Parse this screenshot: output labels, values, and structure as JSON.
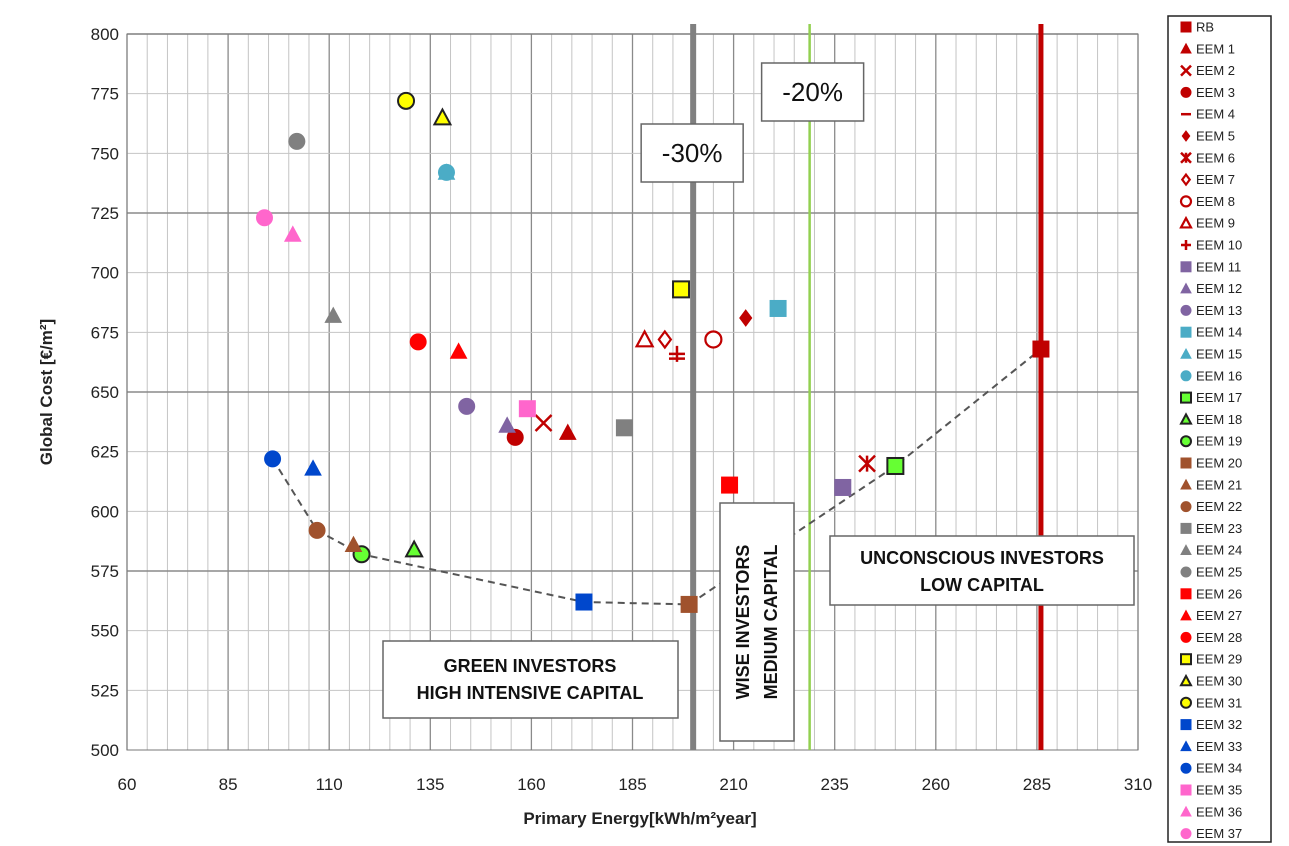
{
  "chart_data": {
    "type": "scatter",
    "title": "",
    "xlabel": "Primary Energy[kWh/m²year]",
    "ylabel": "Global Cost [€/m²]",
    "xlim": [
      60,
      310
    ],
    "ylim": [
      500,
      800
    ],
    "xticks": [
      "60",
      "85",
      "110",
      "135",
      "160",
      "185",
      "210",
      "235",
      "260",
      "285",
      "310"
    ],
    "yticks": [
      "500",
      "525",
      "550",
      "575",
      "600",
      "625",
      "650",
      "675",
      "700",
      "725",
      "750",
      "775",
      "800"
    ],
    "grid": true,
    "legend_position": "right",
    "series": [
      {
        "name": "RB",
        "shape": "square",
        "filled": true,
        "color": "#c00000",
        "x": 286,
        "y": 668
      },
      {
        "name": "EEM 1",
        "shape": "triangle",
        "filled": true,
        "color": "#c00000",
        "x": 169,
        "y": 633
      },
      {
        "name": "EEM 2",
        "shape": "x",
        "filled": false,
        "color": "#c00000",
        "x": 163,
        "y": 637
      },
      {
        "name": "EEM 3",
        "shape": "circle",
        "filled": true,
        "color": "#c00000",
        "x": 156,
        "y": 631
      },
      {
        "name": "EEM 4",
        "shape": "dash",
        "filled": false,
        "color": "#c00000",
        "x": 196,
        "y": 664
      },
      {
        "name": "EEM 5",
        "shape": "diamond",
        "filled": true,
        "color": "#c00000",
        "x": 213,
        "y": 681
      },
      {
        "name": "EEM 6",
        "shape": "star",
        "filled": false,
        "color": "#c00000",
        "x": 243,
        "y": 620
      },
      {
        "name": "EEM 7",
        "shape": "diamond",
        "filled": false,
        "color": "#c00000",
        "x": 193,
        "y": 672
      },
      {
        "name": "EEM 8",
        "shape": "circle",
        "filled": false,
        "color": "#c00000",
        "x": 205,
        "y": 672
      },
      {
        "name": "EEM 9",
        "shape": "triangle",
        "filled": false,
        "color": "#c00000",
        "x": 188,
        "y": 672
      },
      {
        "name": "EEM 10",
        "shape": "plus",
        "filled": false,
        "color": "#c00000",
        "x": 196,
        "y": 666
      },
      {
        "name": "EEM 11",
        "shape": "square",
        "filled": true,
        "color": "#8064a2",
        "x": 237,
        "y": 610
      },
      {
        "name": "EEM 12",
        "shape": "triangle",
        "filled": true,
        "color": "#8064a2",
        "x": 154,
        "y": 636
      },
      {
        "name": "EEM 13",
        "shape": "circle",
        "filled": true,
        "color": "#8064a2",
        "x": 144,
        "y": 644
      },
      {
        "name": "EEM 14",
        "shape": "square",
        "filled": true,
        "color": "#4bacc6",
        "x": 221,
        "y": 685
      },
      {
        "name": "EEM 15",
        "shape": "triangle",
        "filled": true,
        "color": "#4bacc6",
        "x": 139,
        "y": 742
      },
      {
        "name": "EEM 16",
        "shape": "circle",
        "filled": true,
        "color": "#4bacc6",
        "x": 139,
        "y": 742
      },
      {
        "name": "EEM 17",
        "shape": "square",
        "filled": true,
        "color": "#66ff33",
        "stroke": "#222",
        "x": 250,
        "y": 619
      },
      {
        "name": "EEM 18",
        "shape": "triangle",
        "filled": true,
        "color": "#66ff33",
        "stroke": "#222",
        "x": 131,
        "y": 584
      },
      {
        "name": "EEM 19",
        "shape": "circle",
        "filled": true,
        "color": "#66ff33",
        "stroke": "#222",
        "x": 118,
        "y": 582
      },
      {
        "name": "EEM 20",
        "shape": "square",
        "filled": true,
        "color": "#a0522d",
        "x": 199,
        "y": 561
      },
      {
        "name": "EEM 21",
        "shape": "triangle",
        "filled": true,
        "color": "#a0522d",
        "x": 116,
        "y": 586
      },
      {
        "name": "EEM 22",
        "shape": "circle",
        "filled": true,
        "color": "#a0522d",
        "x": 107,
        "y": 592
      },
      {
        "name": "EEM 23",
        "shape": "square",
        "filled": true,
        "color": "#808080",
        "x": 183,
        "y": 635
      },
      {
        "name": "EEM 24",
        "shape": "triangle",
        "filled": true,
        "color": "#808080",
        "x": 111,
        "y": 682
      },
      {
        "name": "EEM 25",
        "shape": "circle",
        "filled": true,
        "color": "#808080",
        "x": 102,
        "y": 755
      },
      {
        "name": "EEM 26",
        "shape": "square",
        "filled": true,
        "color": "#ff0000",
        "x": 209,
        "y": 611
      },
      {
        "name": "EEM 27",
        "shape": "triangle",
        "filled": true,
        "color": "#ff0000",
        "x": 142,
        "y": 667
      },
      {
        "name": "EEM 28",
        "shape": "circle",
        "filled": true,
        "color": "#ff0000",
        "x": 132,
        "y": 671
      },
      {
        "name": "EEM 29",
        "shape": "square",
        "filled": true,
        "color": "#ffff00",
        "stroke": "#222",
        "x": 197,
        "y": 693
      },
      {
        "name": "EEM 30",
        "shape": "triangle",
        "filled": true,
        "color": "#ffff00",
        "stroke": "#222",
        "x": 138,
        "y": 765
      },
      {
        "name": "EEM 31",
        "shape": "circle",
        "filled": true,
        "color": "#ffff00",
        "stroke": "#222",
        "x": 129,
        "y": 772
      },
      {
        "name": "EEM 32",
        "shape": "square",
        "filled": true,
        "color": "#0047cc",
        "x": 173,
        "y": 562
      },
      {
        "name": "EEM 33",
        "shape": "triangle",
        "filled": true,
        "color": "#0047cc",
        "x": 106,
        "y": 618
      },
      {
        "name": "EEM 34",
        "shape": "circle",
        "filled": true,
        "color": "#0047cc",
        "x": 96,
        "y": 622
      },
      {
        "name": "EEM 35",
        "shape": "square",
        "filled": true,
        "color": "#ff66cc",
        "x": 159,
        "y": 643
      },
      {
        "name": "EEM 36",
        "shape": "triangle",
        "filled": true,
        "color": "#ff66cc",
        "x": 101,
        "y": 716
      },
      {
        "name": "EEM 37",
        "shape": "circle",
        "filled": true,
        "color": "#ff66cc",
        "x": 94,
        "y": 723
      }
    ],
    "pareto_front": {
      "x": [
        96,
        107,
        118,
        173,
        199,
        250,
        286
      ],
      "y": [
        622,
        592,
        582,
        562,
        561,
        619,
        668
      ]
    },
    "reference_lines": [
      {
        "label": "-30%",
        "x": 200,
        "color": "#808080"
      },
      {
        "label": "-20%",
        "x": 228.8,
        "color": "#92d050"
      },
      {
        "label": "",
        "x": 286,
        "color": "#c00000"
      }
    ],
    "annotations": [
      {
        "lines": [
          "GREEN INVESTORS",
          "HIGH INTENSIVE CAPITAL"
        ]
      },
      {
        "lines": [
          "WISE INVESTORS",
          "MEDIUM CAPITAL"
        ]
      },
      {
        "lines": [
          "UNCONSCIOUS INVESTORS",
          "LOW CAPITAL"
        ]
      }
    ]
  }
}
